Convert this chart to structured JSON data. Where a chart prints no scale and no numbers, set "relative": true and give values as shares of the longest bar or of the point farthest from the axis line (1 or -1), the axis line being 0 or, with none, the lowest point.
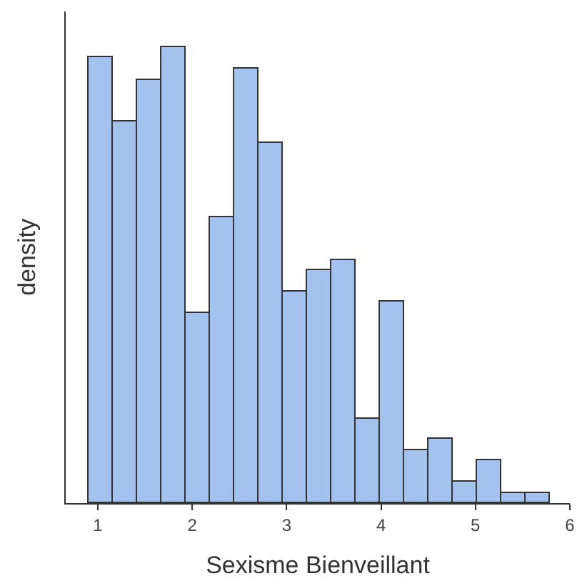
{
  "chart_data": {
    "type": "bar",
    "relative": true,
    "xlabel": "Sexisme Bienveillant",
    "ylabel": "density",
    "color": "#a4c2ee",
    "x": [
      1.03,
      1.29,
      1.55,
      1.8,
      2.06,
      2.32,
      2.57,
      2.83,
      3.09,
      3.34,
      3.6,
      3.86,
      4.12,
      4.37,
      4.63,
      4.89,
      5.14,
      5.4,
      5.66
    ],
    "values": [
      0.978,
      0.837,
      0.93,
      1.0,
      0.419,
      0.629,
      0.954,
      0.791,
      0.466,
      0.512,
      0.535,
      0.186,
      0.442,
      0.116,
      0.14,
      0.047,
      0.093,
      0.023,
      0.023
    ],
    "xlim": [
      0.66,
      6.0
    ],
    "xticks": [
      1,
      2,
      3,
      4,
      5,
      6
    ]
  }
}
